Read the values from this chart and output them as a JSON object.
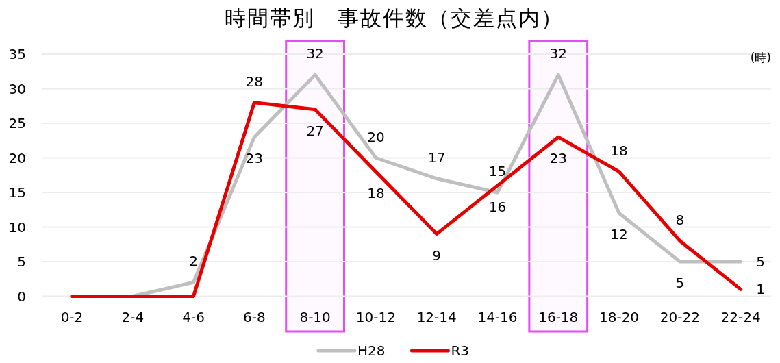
{
  "chart_data": {
    "type": "line",
    "title": "時間帯別　事故件数（交差点内）",
    "xlabel": "(時)",
    "categories": [
      "0-2",
      "2-4",
      "4-6",
      "6-8",
      "8-10",
      "10-12",
      "12-14",
      "14-16",
      "16-18",
      "18-20",
      "20-22",
      "22-24"
    ],
    "series": [
      {
        "name": "H28",
        "color": "#bfbfbf",
        "values": [
          0,
          0,
          2,
          23,
          32,
          20,
          17,
          15,
          32,
          12,
          5,
          5
        ],
        "value_labels": [
          null,
          null,
          "2",
          "23",
          "32",
          "20",
          "17",
          "15",
          "32",
          "12",
          "5",
          "5"
        ]
      },
      {
        "name": "R3",
        "color": "#e60000",
        "values": [
          0,
          0,
          0,
          28,
          27,
          18,
          9,
          16,
          23,
          18,
          8,
          1
        ],
        "value_labels": [
          null,
          null,
          null,
          "28",
          "27",
          "18",
          "9",
          "16",
          "23",
          "18",
          "8",
          "1"
        ]
      }
    ],
    "ylim": [
      0,
      35
    ],
    "yticks": [
      0,
      5,
      10,
      15,
      20,
      25,
      30,
      35
    ],
    "grid": "y",
    "legend": "bottom",
    "bands": [
      {
        "axis": "x",
        "from": "8-10",
        "to": "8-10",
        "color": "#e34ef2"
      },
      {
        "axis": "x",
        "from": "16-18",
        "to": "16-18",
        "color": "#e34ef2"
      }
    ]
  }
}
